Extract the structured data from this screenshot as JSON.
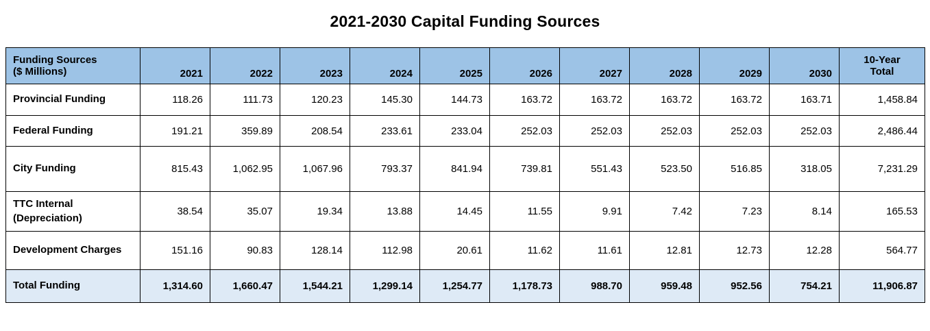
{
  "title": "2021-2030 Capital Funding Sources",
  "colors": {
    "header_bg": "#9DC3E6",
    "total_row_bg": "#DEEAF6",
    "border": "#000000",
    "text": "#000000"
  },
  "chart_data": {
    "type": "table",
    "title": "2021-2030 Capital Funding Sources",
    "units": "$ Millions",
    "header": {
      "label_line1": "Funding Sources",
      "label_line2": "($ Millions)",
      "years": [
        "2021",
        "2022",
        "2023",
        "2024",
        "2025",
        "2026",
        "2027",
        "2028",
        "2029",
        "2030"
      ],
      "total_line1": "10-Year",
      "total_line2": "Total"
    },
    "rows": [
      {
        "label": "Provincial Funding",
        "values": [
          "118.26",
          "111.73",
          "120.23",
          "145.30",
          "144.73",
          "163.72",
          "163.72",
          "163.72",
          "163.72",
          "163.71"
        ],
        "total": "1,458.84"
      },
      {
        "label": "Federal Funding",
        "values": [
          "191.21",
          "359.89",
          "208.54",
          "233.61",
          "233.04",
          "252.03",
          "252.03",
          "252.03",
          "252.03",
          "252.03"
        ],
        "total": "2,486.44"
      },
      {
        "label": "City Funding",
        "values": [
          "815.43",
          "1,062.95",
          "1,067.96",
          "793.37",
          "841.94",
          "739.81",
          "551.43",
          "523.50",
          "516.85",
          "318.05"
        ],
        "total": "7,231.29"
      },
      {
        "label": "TTC Internal (Depreciation)",
        "values": [
          "38.54",
          "35.07",
          "19.34",
          "13.88",
          "14.45",
          "11.55",
          "9.91",
          "7.42",
          "7.23",
          "8.14"
        ],
        "total": "165.53"
      },
      {
        "label": "Development Charges",
        "values": [
          "151.16",
          "90.83",
          "128.14",
          "112.98",
          "20.61",
          "11.62",
          "11.61",
          "12.81",
          "12.73",
          "12.28"
        ],
        "total": "564.77"
      }
    ],
    "total_row": {
      "label": "Total Funding",
      "values": [
        "1,314.60",
        "1,660.47",
        "1,544.21",
        "1,299.14",
        "1,254.77",
        "1,178.73",
        "988.70",
        "959.48",
        "952.56",
        "754.21"
      ],
      "total": "11,906.87"
    }
  }
}
